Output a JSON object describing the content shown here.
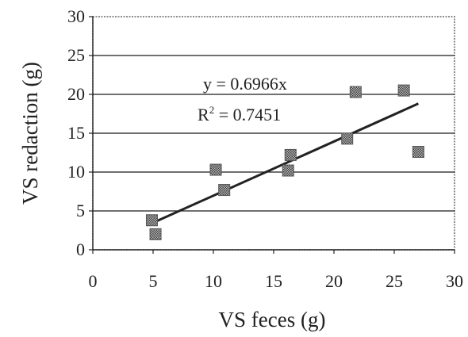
{
  "chart_data": {
    "type": "scatter",
    "xlabel": "VS feces (g)",
    "ylabel": "VS redaction (g)",
    "xlim": [
      0,
      30
    ],
    "ylim": [
      0,
      30
    ],
    "xticks": [
      "0",
      "5",
      "10",
      "15",
      "20",
      "25",
      "30"
    ],
    "yticks": [
      "0",
      "5",
      "10",
      "15",
      "20",
      "25",
      "30"
    ],
    "grid": "horizontal",
    "series": [
      {
        "marker": "hatched-square",
        "color": "#555555",
        "points": [
          {
            "x": 4.9,
            "y": 3.8
          },
          {
            "x": 5.2,
            "y": 2.0
          },
          {
            "x": 10.2,
            "y": 10.3
          },
          {
            "x": 10.9,
            "y": 7.7
          },
          {
            "x": 16.2,
            "y": 10.2
          },
          {
            "x": 16.4,
            "y": 12.2
          },
          {
            "x": 21.1,
            "y": 14.3
          },
          {
            "x": 21.8,
            "y": 20.3
          },
          {
            "x": 25.8,
            "y": 20.5
          },
          {
            "x": 27.0,
            "y": 12.6
          }
        ]
      }
    ],
    "trendline": {
      "slope": 0.6966,
      "x_range": [
        5,
        27
      ],
      "color": "#222222"
    },
    "annotations": {
      "equation": "y = 0.6966x",
      "r2_prefix": "R",
      "r2_exp": "2",
      "r2_suffix": " = 0.7451"
    }
  }
}
